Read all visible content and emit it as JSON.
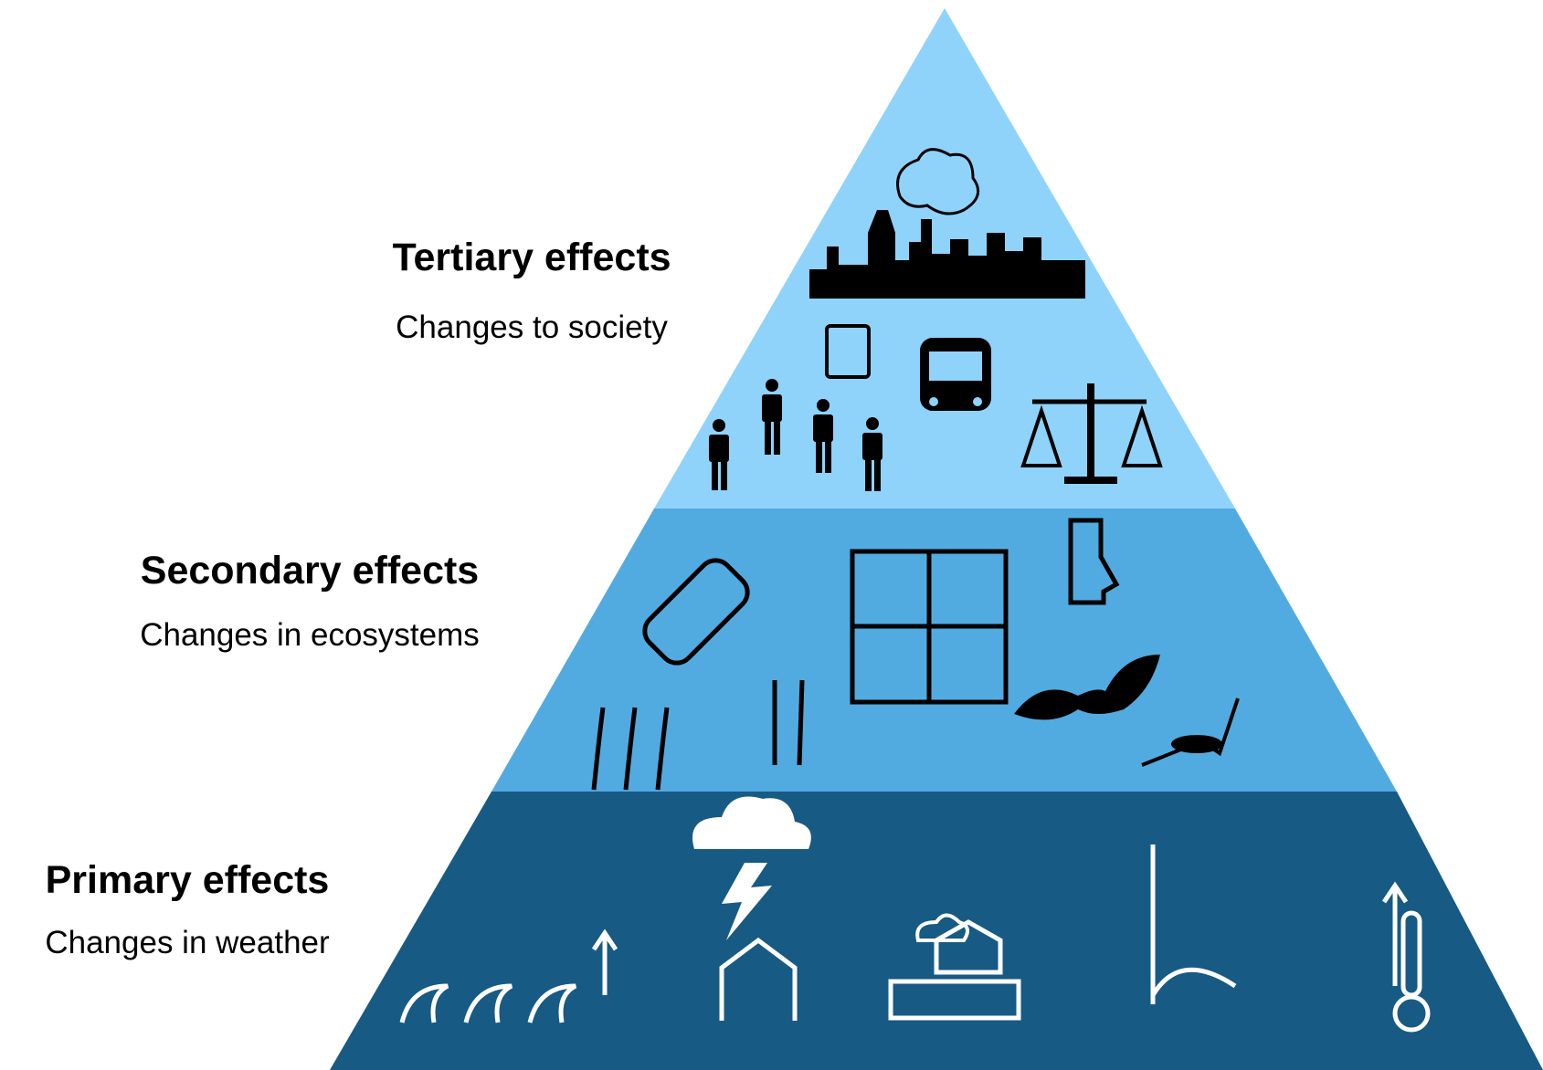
{
  "tiers": [
    {
      "title": "Tertiary effects",
      "subtitle": "Changes to society"
    },
    {
      "title": "Secondary effects",
      "subtitle": "Changes in ecosystems"
    },
    {
      "title": "Primary effects",
      "subtitle": "Changes in weather"
    }
  ]
}
